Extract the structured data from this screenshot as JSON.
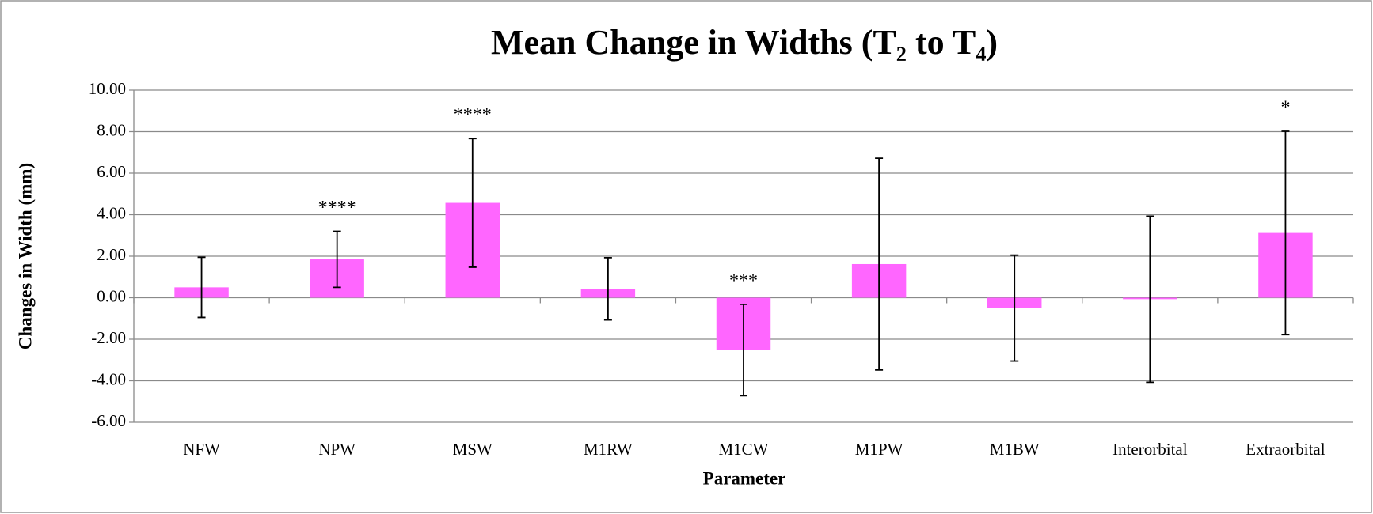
{
  "chart_data": {
    "type": "bar",
    "title": "Mean Change in Widths (T₂ to T₄)",
    "xlabel": "Parameter",
    "ylabel": "Changes in Width (mm)",
    "categories": [
      "NFW",
      "NPW",
      "MSW",
      "M1RW",
      "M1CW",
      "M1PW",
      "M1BW",
      "Interorbital",
      "Extraorbital"
    ],
    "values": [
      0.5,
      1.85,
      4.57,
      0.43,
      -2.52,
      1.62,
      -0.5,
      -0.07,
      3.12
    ],
    "errors": [
      1.45,
      1.35,
      3.1,
      1.5,
      2.2,
      5.1,
      2.55,
      4.0,
      4.9
    ],
    "annotations": [
      null,
      "****",
      "****",
      null,
      "***",
      null,
      null,
      null,
      "*"
    ],
    "color": "#ff66ff",
    "ylim": [
      -6,
      10
    ],
    "yticks": [
      {
        "value": -6,
        "label": "-6.00"
      },
      {
        "value": -4,
        "label": "-4.00"
      },
      {
        "value": -2,
        "label": "-2.00"
      },
      {
        "value": 0,
        "label": "0.00"
      },
      {
        "value": 2,
        "label": "2.00"
      },
      {
        "value": 4,
        "label": "4.00"
      },
      {
        "value": 6,
        "label": "6.00"
      },
      {
        "value": 8,
        "label": "8.00"
      },
      {
        "value": 10,
        "label": "10.00"
      }
    ],
    "grid": true
  }
}
